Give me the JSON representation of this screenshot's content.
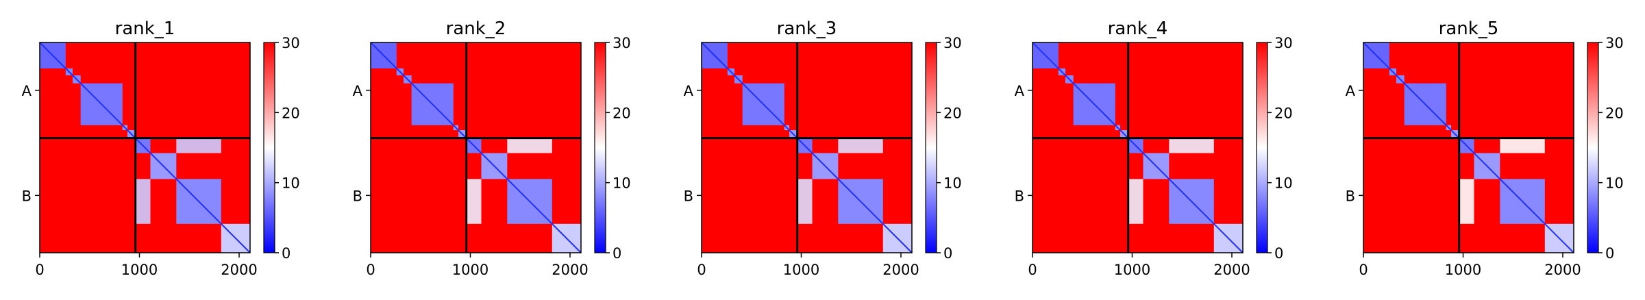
{
  "chart_data": [
    {
      "type": "heatmap",
      "title": "rank_1",
      "x_ticks": [
        "0",
        "1000",
        "2000"
      ],
      "x_tick_values": [
        0,
        1000,
        2000
      ],
      "x_range": [
        0,
        2110
      ],
      "y_ticks": [
        "A",
        "B"
      ],
      "chain_boundary": 960,
      "colorbar": {
        "range": [
          0,
          30
        ],
        "ticks": [
          "0",
          "10",
          "20",
          "30"
        ],
        "colormap": "bwr"
      },
      "low_blocks": [
        [
          0,
          260,
          6
        ],
        [
          260,
          330,
          8
        ],
        [
          330,
          410,
          8
        ],
        [
          410,
          830,
          7
        ],
        [
          830,
          880,
          9
        ],
        [
          880,
          960,
          9
        ],
        [
          960,
          1110,
          7
        ],
        [
          1110,
          1370,
          9
        ],
        [
          1370,
          1820,
          8
        ],
        [
          1820,
          2110,
          12
        ]
      ],
      "partial_blocks": [
        [
          960,
          1110,
          1370,
          1820,
          12
        ]
      ]
    },
    {
      "type": "heatmap",
      "title": "rank_2",
      "x_ticks": [
        "0",
        "1000",
        "2000"
      ],
      "x_tick_values": [
        0,
        1000,
        2000
      ],
      "x_range": [
        0,
        2110
      ],
      "y_ticks": [
        "A",
        "B"
      ],
      "chain_boundary": 960,
      "colorbar": {
        "range": [
          0,
          30
        ],
        "ticks": [
          "0",
          "10",
          "20",
          "30"
        ],
        "colormap": "bwr"
      },
      "low_blocks": [
        [
          0,
          260,
          6
        ],
        [
          260,
          330,
          8
        ],
        [
          330,
          410,
          8
        ],
        [
          410,
          830,
          7
        ],
        [
          830,
          880,
          9
        ],
        [
          880,
          960,
          9
        ],
        [
          960,
          1110,
          7
        ],
        [
          1110,
          1370,
          9
        ],
        [
          1370,
          1820,
          8
        ],
        [
          1820,
          2110,
          12
        ]
      ],
      "partial_blocks": [
        [
          960,
          1110,
          1370,
          1820,
          14
        ]
      ]
    },
    {
      "type": "heatmap",
      "title": "rank_3",
      "x_ticks": [
        "0",
        "1000",
        "2000"
      ],
      "x_tick_values": [
        0,
        1000,
        2000
      ],
      "x_range": [
        0,
        2110
      ],
      "y_ticks": [
        "A",
        "B"
      ],
      "chain_boundary": 960,
      "colorbar": {
        "range": [
          0,
          30
        ],
        "ticks": [
          "0",
          "10",
          "20",
          "30"
        ],
        "colormap": "bwr"
      },
      "low_blocks": [
        [
          0,
          260,
          6
        ],
        [
          260,
          330,
          8
        ],
        [
          330,
          410,
          8
        ],
        [
          410,
          830,
          7
        ],
        [
          830,
          880,
          9
        ],
        [
          880,
          960,
          9
        ],
        [
          960,
          1110,
          7
        ],
        [
          1110,
          1370,
          9
        ],
        [
          1370,
          1820,
          8
        ],
        [
          1820,
          2110,
          12
        ]
      ],
      "partial_blocks": [
        [
          960,
          1110,
          1370,
          1820,
          13
        ]
      ]
    },
    {
      "type": "heatmap",
      "title": "rank_4",
      "x_ticks": [
        "0",
        "1000",
        "2000"
      ],
      "x_tick_values": [
        0,
        1000,
        2000
      ],
      "x_range": [
        0,
        2110
      ],
      "y_ticks": [
        "A",
        "B"
      ],
      "chain_boundary": 960,
      "colorbar": {
        "range": [
          0,
          30
        ],
        "ticks": [
          "0",
          "10",
          "20",
          "30"
        ],
        "colormap": "bwr"
      },
      "low_blocks": [
        [
          0,
          260,
          6
        ],
        [
          260,
          330,
          8
        ],
        [
          330,
          410,
          8
        ],
        [
          410,
          830,
          7
        ],
        [
          830,
          880,
          9
        ],
        [
          880,
          960,
          9
        ],
        [
          960,
          1110,
          7
        ],
        [
          1110,
          1370,
          9
        ],
        [
          1370,
          1820,
          8
        ],
        [
          1820,
          2110,
          12
        ]
      ],
      "partial_blocks": [
        [
          960,
          1110,
          1370,
          1820,
          14
        ]
      ]
    },
    {
      "type": "heatmap",
      "title": "rank_5",
      "x_ticks": [
        "0",
        "1000",
        "2000"
      ],
      "x_tick_values": [
        0,
        1000,
        2000
      ],
      "x_range": [
        0,
        2110
      ],
      "y_ticks": [
        "A",
        "B"
      ],
      "chain_boundary": 960,
      "colorbar": {
        "range": [
          0,
          30
        ],
        "ticks": [
          "0",
          "10",
          "20",
          "30"
        ],
        "colormap": "bwr"
      },
      "low_blocks": [
        [
          0,
          260,
          6
        ],
        [
          260,
          330,
          8
        ],
        [
          330,
          410,
          8
        ],
        [
          410,
          830,
          7
        ],
        [
          830,
          880,
          9
        ],
        [
          880,
          960,
          9
        ],
        [
          960,
          1110,
          7
        ],
        [
          1110,
          1370,
          9
        ],
        [
          1370,
          1820,
          8
        ],
        [
          1820,
          2110,
          12
        ]
      ],
      "partial_blocks": [
        [
          960,
          1110,
          1370,
          1820,
          15
        ]
      ]
    }
  ]
}
